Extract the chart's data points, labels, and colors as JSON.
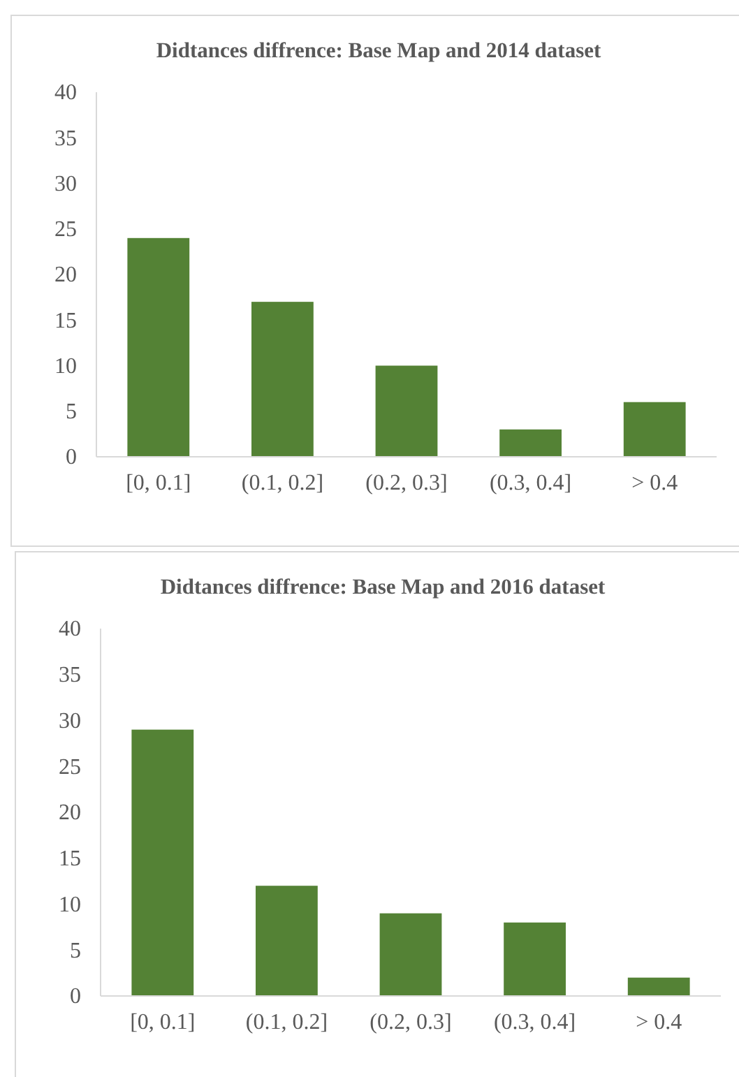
{
  "chart_data": [
    {
      "type": "bar",
      "title": "Didtances diffrence: Base Map and 2014 dataset",
      "categories": [
        "[0, 0.1]",
        "(0.1, 0.2]",
        "(0.2, 0.3]",
        "(0.3, 0.4]",
        "> 0.4"
      ],
      "values": [
        24,
        17,
        10,
        3,
        6
      ],
      "color": "#548235",
      "ylim": [
        0,
        40
      ],
      "yticks": [
        0,
        5,
        10,
        15,
        20,
        25,
        30,
        35,
        40
      ]
    },
    {
      "type": "bar",
      "title": "Didtances diffrence: Base Map and 2016 dataset",
      "categories": [
        "[0, 0.1]",
        "(0.1, 0.2]",
        "(0.2, 0.3]",
        "(0.3, 0.4]",
        "> 0.4"
      ],
      "values": [
        29,
        12,
        9,
        8,
        2
      ],
      "color": "#548235",
      "ylim": [
        0,
        40
      ],
      "yticks": [
        0,
        5,
        10,
        15,
        20,
        25,
        30,
        35,
        40
      ]
    }
  ]
}
